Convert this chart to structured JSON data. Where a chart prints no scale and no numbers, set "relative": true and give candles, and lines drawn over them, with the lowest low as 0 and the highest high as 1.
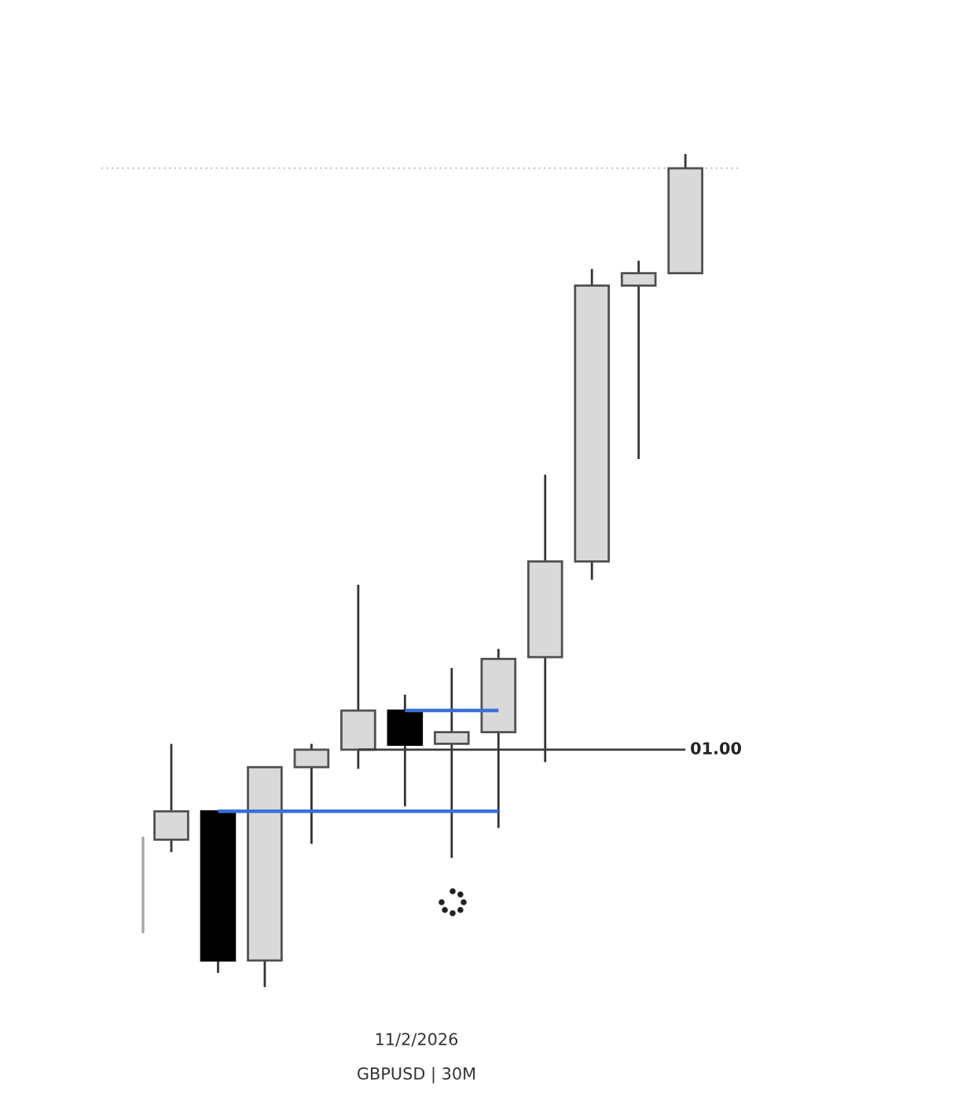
{
  "chart_data": {
    "type": "candlestick",
    "relative": true,
    "tick_labels": false,
    "categories": [
      null,
      null,
      null,
      null,
      null,
      null,
      null,
      null,
      null,
      null,
      null,
      null
    ],
    "ohlc": [
      [
        0.177,
        0.292,
        0.162,
        0.211
      ],
      [
        0.211,
        0.211,
        0.017,
        0.032
      ],
      [
        0.032,
        0.264,
        0,
        0.264
      ],
      [
        0.264,
        0.292,
        0.172,
        0.285
      ],
      [
        0.285,
        0.483,
        0.262,
        0.332
      ],
      [
        0.332,
        0.351,
        0.217,
        0.291
      ],
      [
        0.292,
        0.383,
        0.155,
        0.306
      ],
      [
        0.306,
        0.406,
        0.191,
        0.394
      ],
      [
        0.396,
        0.615,
        0.27,
        0.511
      ],
      [
        0.511,
        0.862,
        0.489,
        0.842
      ],
      [
        0.842,
        0.872,
        0.634,
        0.857
      ],
      [
        0.857,
        1,
        0.857,
        0.983
      ]
    ],
    "colors": [
      "#d9d9d9",
      "#000000",
      "#d9d9d9",
      "#d9d9d9",
      "#d9d9d9",
      "#000000",
      "#d9d9d9",
      "#d9d9d9",
      "#d9d9d9",
      "#d9d9d9",
      "#d9d9d9",
      "#d9d9d9"
    ],
    "series": [
      {
        "type": "line",
        "color": "#3a6fd8",
        "values": [
          null,
          0.211,
          0.211,
          0.211,
          0.211,
          0.211,
          0.211,
          0.211,
          null,
          null,
          null,
          null
        ]
      },
      {
        "type": "line",
        "color": "#3a6fd8",
        "values": [
          null,
          null,
          null,
          null,
          null,
          0.332,
          0.332,
          0.332,
          null,
          null,
          null,
          null
        ]
      },
      {
        "type": "line",
        "name": "01.00",
        "color": "#3c3c3c",
        "values": [
          null,
          null,
          null,
          null,
          0.285,
          0.285,
          0.285,
          0.285,
          0.285,
          0.285,
          0.285,
          0.285
        ]
      }
    ],
    "ref_lines": [
      {
        "axis": "y",
        "value": 0.983,
        "color": "#cfcfcf",
        "line_style": "dotted"
      }
    ],
    "annotations": [
      "11/2/2026",
      "GBPUSD | 30M"
    ]
  }
}
